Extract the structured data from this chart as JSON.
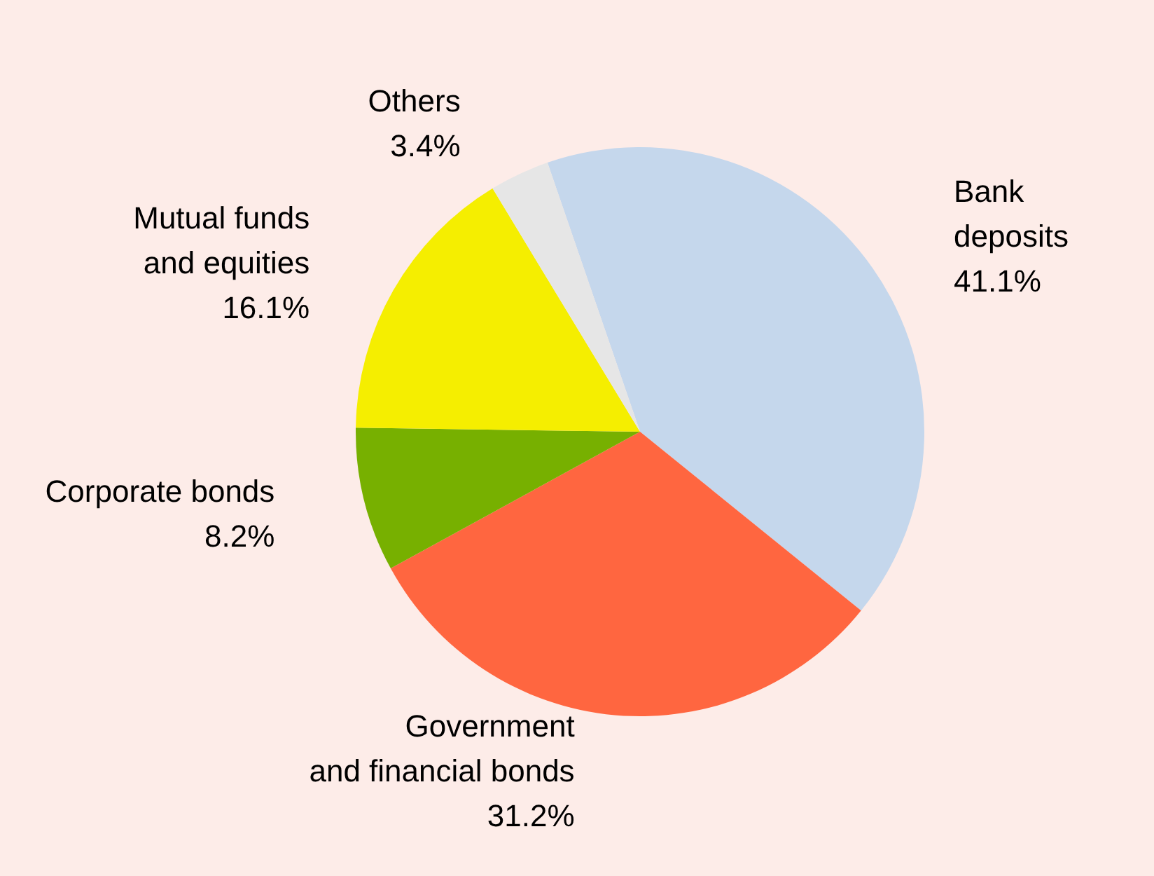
{
  "chart_data": {
    "type": "pie",
    "categories": [
      "Bank\ndeposits",
      "Government\nand financial bonds",
      "Corporate bonds",
      "Mutual funds\nand equities",
      "Others"
    ],
    "values": [
      41.1,
      31.2,
      8.2,
      16.1,
      3.4
    ],
    "colors": [
      "#c5d7ec",
      "#ff6640",
      "#77b000",
      "#f5ee00",
      "#e6e6e6"
    ],
    "value_labels": [
      "41.1%",
      "31.2%",
      "8.2%",
      "16.1%",
      "3.4%"
    ],
    "legend": false
  }
}
